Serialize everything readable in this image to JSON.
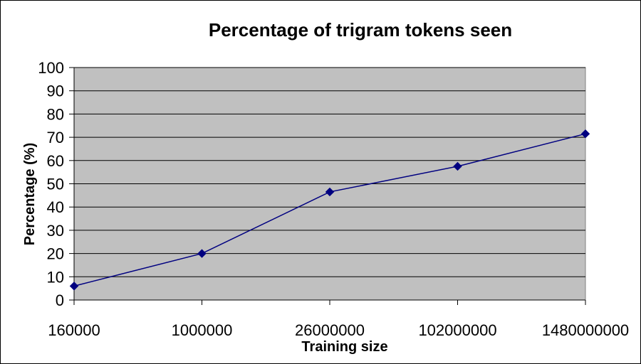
{
  "chart_data": {
    "type": "line",
    "title": "Percentage of trigram tokens seen",
    "xlabel": "Training size",
    "ylabel": "Percentage (%)",
    "categories": [
      "160000",
      "1000000",
      "26000000",
      "102000000",
      "1480000000"
    ],
    "series": [
      {
        "values": [
          6,
          20,
          46.5,
          57.5,
          71.5
        ],
        "color": "#000080",
        "marker": "diamond"
      }
    ],
    "ylim": [
      0,
      100
    ],
    "yticks": [
      0,
      10,
      20,
      30,
      40,
      50,
      60,
      70,
      80,
      90,
      100
    ],
    "grid": true,
    "legend": "none",
    "plot_background": "#c0c0c0"
  }
}
